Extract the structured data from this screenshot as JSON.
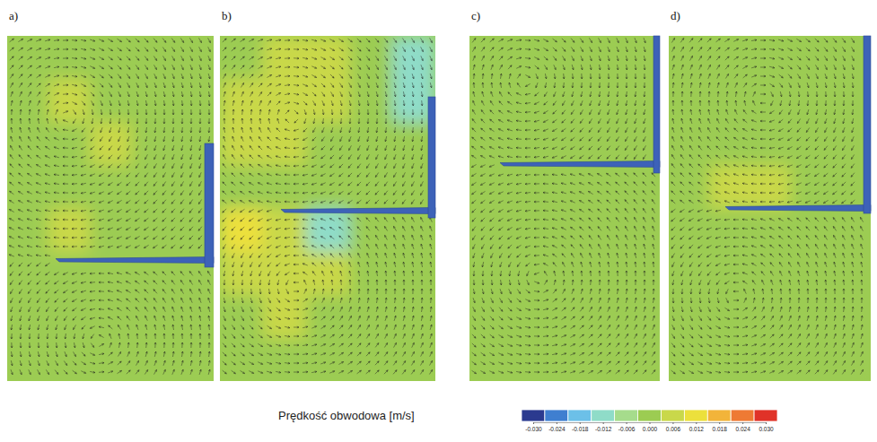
{
  "chart_data": {
    "type": "vector_field",
    "panels": [
      {
        "label": "a)",
        "field": [
          [
            0.002,
            0.002,
            0.002,
            0.002,
            0.002
          ],
          [
            0.002,
            0.004,
            0.002,
            0.002,
            0.002
          ],
          [
            0.002,
            0.002,
            0.004,
            0.002,
            0.002
          ],
          [
            0.002,
            0.002,
            0.002,
            0.002,
            0.002
          ],
          [
            0.002,
            0.004,
            0.002,
            0.002,
            0.002
          ],
          [
            0.002,
            0.002,
            0.002,
            0.002,
            0.002
          ],
          [
            0.002,
            0.002,
            0.002,
            0.002,
            0.002
          ],
          [
            0.002,
            0.002,
            0.002,
            0.002,
            0.002
          ]
        ]
      },
      {
        "label": "b)",
        "field": [
          [
            0.002,
            0.004,
            0.004,
            0.002,
            -0.014
          ],
          [
            0.004,
            0.008,
            0.004,
            0.002,
            -0.01
          ],
          [
            0.004,
            0.006,
            0.002,
            0.002,
            0.002
          ],
          [
            0.002,
            0.002,
            0.002,
            0.002,
            0.002
          ],
          [
            0.012,
            0.004,
            -0.01,
            0.002,
            0.002
          ],
          [
            0.004,
            0.006,
            0.004,
            0.002,
            0.002
          ],
          [
            0.002,
            0.004,
            0.002,
            0.002,
            0.002
          ],
          [
            0.002,
            0.002,
            0.002,
            0.002,
            0.002
          ]
        ]
      },
      {
        "label": "c)",
        "field": [
          [
            0.002,
            0.002,
            0.002,
            0.002,
            0.002
          ],
          [
            0.002,
            0.002,
            0.002,
            0.002,
            0.002
          ],
          [
            0.002,
            0.002,
            0.002,
            0.002,
            0.002
          ],
          [
            0.002,
            0.002,
            0.002,
            0.002,
            0.002
          ],
          [
            0.002,
            0.002,
            0.002,
            0.002,
            0.002
          ],
          [
            0.002,
            0.002,
            0.002,
            0.002,
            0.002
          ],
          [
            0.002,
            0.002,
            0.002,
            0.002,
            0.002
          ],
          [
            0.002,
            0.002,
            0.002,
            0.002,
            0.002
          ]
        ]
      },
      {
        "label": "d)",
        "field": [
          [
            0.002,
            0.002,
            0.002,
            0.002,
            0.002
          ],
          [
            0.002,
            0.002,
            0.002,
            0.002,
            0.002
          ],
          [
            0.002,
            0.002,
            0.002,
            0.002,
            0.002
          ],
          [
            0.002,
            0.004,
            0.004,
            0.002,
            0.002
          ],
          [
            0.002,
            0.002,
            0.002,
            0.002,
            0.002
          ],
          [
            0.002,
            0.002,
            0.002,
            0.002,
            0.002
          ],
          [
            0.002,
            0.002,
            0.002,
            0.002,
            0.002
          ],
          [
            0.002,
            0.002,
            0.002,
            0.002,
            0.002
          ]
        ]
      }
    ],
    "colorbar": {
      "title": "Prędkość obwodowa [m/s]",
      "range": [
        -0.03,
        0.03
      ],
      "ticks": [
        {
          "value": -0.03,
          "label": "-0.030"
        },
        {
          "value": -0.024,
          "label": "-0.024"
        },
        {
          "value": -0.018,
          "label": "-0.018"
        },
        {
          "value": -0.012,
          "label": "-0.012"
        },
        {
          "value": -0.006,
          "label": "-0.006"
        },
        {
          "value": 0,
          "label": "0.000"
        },
        {
          "value": 0.006,
          "label": "0.006"
        },
        {
          "value": 0.012,
          "label": "0.012"
        },
        {
          "value": 0.018,
          "label": "0.018"
        },
        {
          "value": 0.024,
          "label": "0.024"
        },
        {
          "value": 0.03,
          "label": "0.030"
        }
      ],
      "colors": [
        "#2b3a8f",
        "#3f7fd0",
        "#6cc0e8",
        "#8fdcc8",
        "#a6dc8c",
        "#9ccc52",
        "#c9d84a",
        "#ece03c",
        "#f2b43a",
        "#ee7a34",
        "#e03228"
      ]
    }
  }
}
